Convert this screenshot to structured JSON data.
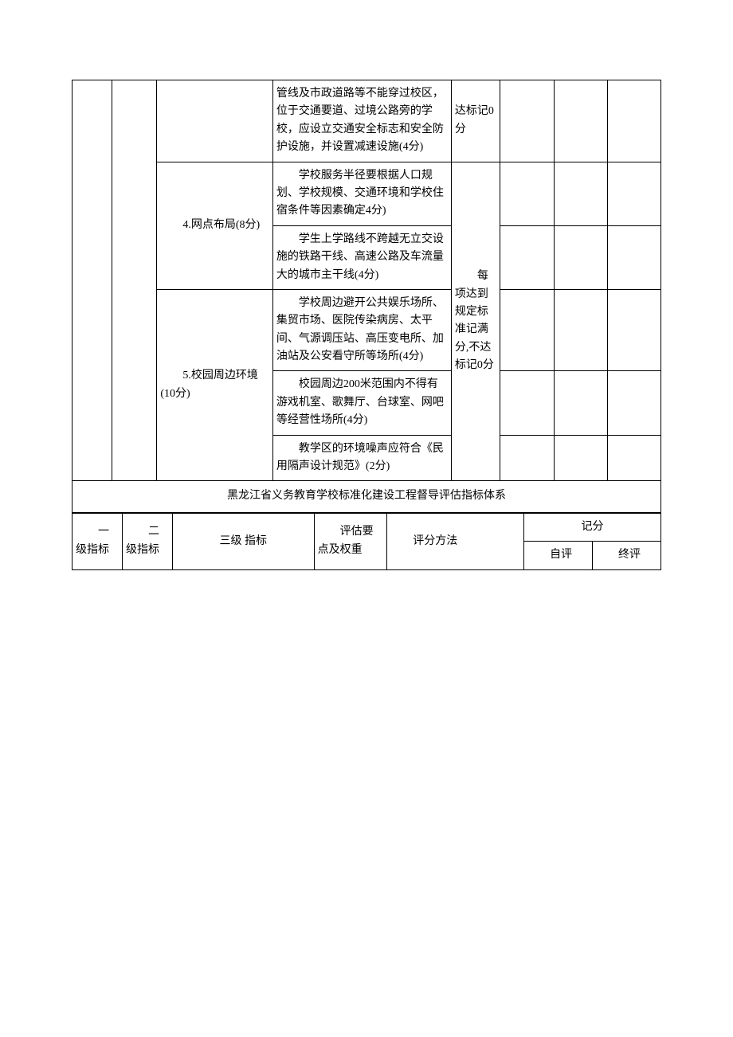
{
  "table1": {
    "rows": {
      "r1": {
        "desc": "管线及市政道路等不能穿过校区，位于交通要道、过境公路旁的学校，应设立交通安全标志和安全防护设施，并设置减速设施(4分)",
        "score": "达标记0分"
      },
      "r2": {
        "cat": "　　4.网点布局(8分)",
        "desc": "　　学校服务半径要根据人口规划、学校规模、交通环境和学校住宿条件等因素确定4分)"
      },
      "r3": {
        "desc": "　　学生上学路线不跨越无立交设施的铁路干线、高速公路及车流量大的城市主干线(4分)"
      },
      "scoring": "　　每项达到规定标准记满分,不达标记0分",
      "r4": {
        "cat": "　　5.校园周边环境(10分)",
        "desc": "　　学校周边避开公共娱乐场所、集贸市场、医院传染病房、太平间、气源调压站、高压变电所、加油站及公安看守所等场所(4分)"
      },
      "r5": {
        "desc": "　　校园周边200米范围内不得有游戏机室、歌舞厅、台球室、网吧等经营性场所(4分)"
      },
      "r6": {
        "desc": "　　教学区的环境噪声应符合《民用隔声设计规范》(2分)"
      }
    },
    "title": "黑龙江省义务教育学校标准化建设工程督导评估指标体系"
  },
  "table2": {
    "headers": {
      "h1": "　　一级指标",
      "h2": "　　二级指标",
      "h3": "三级 指标",
      "h4": "　　评估要点及权重",
      "h5": "　　评分方法",
      "h6": "记分",
      "h6a": "　　自评",
      "h6b": "　　终评"
    }
  }
}
